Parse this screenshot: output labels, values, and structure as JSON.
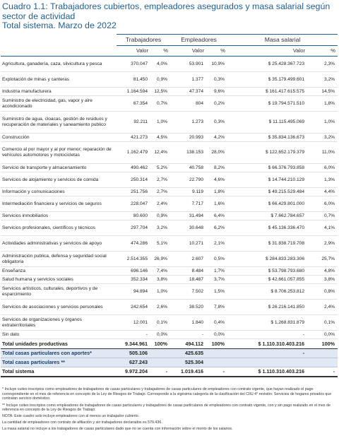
{
  "title": {
    "line1": "Cuadro 1.1: Trabajadores cubiertos, empleadores asegurados y masa salarial según sector de actividad",
    "line2": "Total sistema. Marzo de 2022"
  },
  "groups": {
    "trabajadores": "Trabajadores",
    "empleadores": "Empleadores",
    "masa": "Masa salarial"
  },
  "subheaders": {
    "valor": "Valor",
    "pct": "%"
  },
  "rows": [
    {
      "label": "Agricultura, ganadería, caza, silvicultura y pesca",
      "t": "370.047",
      "tp": "4,0%",
      "e": "53.901",
      "ep": "10,9%",
      "m": "$ 25.428.367.723",
      "mp": "2,3%",
      "cls": "r2"
    },
    {
      "label": "Explotación de minas y canteras",
      "t": "81.450",
      "tp": "0,9%",
      "e": "1.377",
      "ep": "0,3%",
      "m": "$ 35.179.499.601",
      "mp": "3,2%",
      "cls": "r2"
    },
    {
      "label": "Industria manufacturera",
      "t": "1.164.594",
      "tp": "12,5%",
      "e": "47.374",
      "ep": "9,6%",
      "m": "$ 161.417.615.575",
      "mp": "14,5%",
      "cls": "r1"
    },
    {
      "label": "Suministro de electricidad, gas, vapor y aire acondicionado",
      "t": "67.354",
      "tp": "0,7%",
      "e": "804",
      "ep": "0,2%",
      "m": "$ 19.794.571.510",
      "mp": "1,8%",
      "cls": "r2"
    },
    {
      "label": "Suministro de agua, cloacas, gestión de residuos y recuperación de materiales y saneamiento publico",
      "t": "92.211",
      "tp": "1,0%",
      "e": "1.273",
      "ep": "0,3%",
      "m": "$ 11.115.495.069",
      "mp": "1,0%",
      "cls": "r3"
    },
    {
      "label": "Construcción",
      "t": "421.273",
      "tp": "4,5%",
      "e": "20.993",
      "ep": "4,2%",
      "m": "$ 35.834.136.673",
      "mp": "3,2%",
      "cls": "r1"
    },
    {
      "label": "Comercio al por mayor y al por menor; reparación de vehículos automotores y motocicletas",
      "t": "1.162.479",
      "tp": "12,4%",
      "e": "138.153",
      "ep": "28,0%",
      "m": "$ 122.652.179.379",
      "mp": "11,0%",
      "cls": "r3"
    },
    {
      "label": "Servicio de transporte y almacenamiento",
      "t": "490.462",
      "tp": "5,2%",
      "e": "40.758",
      "ep": "8,2%",
      "m": "$ 66.376.793.858",
      "mp": "6,0%",
      "cls": "r1"
    },
    {
      "label": "Servicios de alojamiento y servicios de comida",
      "t": "250.314",
      "tp": "2,7%",
      "e": "22.790",
      "ep": "4,6%",
      "m": "$ 14.744.210.129",
      "mp": "1,3%",
      "cls": "r2"
    },
    {
      "label": "Información y comunicaciones",
      "t": "251.756",
      "tp": "2,7%",
      "e": "9.119",
      "ep": "1,8%",
      "m": "$ 49.215.529.484",
      "mp": "4,4%",
      "cls": "r1"
    },
    {
      "label": "Intermediación financiera y servicios de seguros",
      "t": "228.047",
      "tp": "2,4%",
      "e": "7.717",
      "ep": "1,6%",
      "m": "$ 66.429.801.000",
      "mp": "6,0%",
      "cls": "r2"
    },
    {
      "label": "Servicios inmobiliarios",
      "t": "80.600",
      "tp": "0,9%",
      "e": "31.494",
      "ep": "6,4%",
      "m": "$ 7.662.784.657",
      "mp": "0,7%",
      "cls": "r1"
    },
    {
      "label": "Servicios profesionales, científicos y técnicos",
      "t": "297.704",
      "tp": "3,2%",
      "e": "30.648",
      "ep": "6,2%",
      "m": "$ 45.136.336.470",
      "mp": "4,1%",
      "cls": "r2"
    },
    {
      "label": "Actividades administrativas y servicios de apoyo",
      "t": "474.286",
      "tp": "5,1%",
      "e": "10.271",
      "ep": "2,1%",
      "m": "$ 31.838.719.708",
      "mp": "2,9%",
      "cls": "r2"
    },
    {
      "label": "Administración publica, defensa y seguridad social obligatoria",
      "t": "2.514.355",
      "tp": "26,9%",
      "e": "2.607",
      "ep": "0,5%",
      "m": "$ 284.833.283.306",
      "mp": "25,7%",
      "cls": "r2"
    },
    {
      "label": "Enseñanza",
      "t": "696.146",
      "tp": "7,4%",
      "e": "8.484",
      "ep": "1,7%",
      "m": "$ 53.798.793.680",
      "mp": "4,8%",
      "cls": "r1"
    },
    {
      "label": "Salud humana y servicios sociales",
      "t": "352.334",
      "tp": "3,8%",
      "e": "18.487",
      "ep": "3,7%",
      "m": "$ 42.661.057.855",
      "mp": "3,8%",
      "cls": "r1"
    },
    {
      "label": "Servicios artísticos, culturales, deportivos y de esparcimiento",
      "t": "94.894",
      "tp": "1,0%",
      "e": "7.502",
      "ep": "1,5%",
      "m": "$ 8.706.253.812",
      "mp": "0,8%",
      "cls": "r2"
    },
    {
      "label": "Servicios de asociaciones y servicios personales",
      "t": "242.654",
      "tp": "2,6%",
      "e": "38.520",
      "ep": "7,8%",
      "m": "$ 26.216.141.850",
      "mp": "2,4%",
      "cls": "r2"
    },
    {
      "label": "Servicios de organizaciones y órganos extraterritoriales",
      "t": "12.001",
      "tp": "0,1%",
      "e": "1.840",
      "ep": "0,4%",
      "m": "$ 1.268.831.879",
      "mp": "0,1%",
      "cls": "r2"
    },
    {
      "label": "Sin dato",
      "t": "-",
      "tp": "0,0%",
      "e": "-",
      "ep": "0,0%",
      "m": "-",
      "mp": "0,0%",
      "cls": "r1"
    }
  ],
  "totals": {
    "productivas": {
      "label": "Total unidades productivas",
      "t": "9.344.961",
      "tp": "100%",
      "e": "494.112",
      "ep": "100%",
      "m": "$ 1.110.310.403.216",
      "mp": "100%"
    },
    "con_aportes": {
      "label": "Total casas particulares con aportes*",
      "t": "505.106",
      "tp": "",
      "e": "425.635",
      "ep": "",
      "m": "-",
      "mp": ""
    },
    "particulares": {
      "label": "Total casas particulares **",
      "t": "627.243",
      "tp": "",
      "e": "525.304",
      "ep": "",
      "m": "",
      "mp": ""
    },
    "sistema": {
      "label": "Total sistema",
      "t": "9.972.204",
      "tp": "-",
      "e": "1.019.416",
      "ep": "-",
      "m": "$ 1.110.310.403.216",
      "mp": "-"
    }
  },
  "notes": [
    "* Incluye cuites inscriptos como empleadores de trabajadores de casas particulares y trabajadores de casas particulares de empleadores con contrato vigente, que hayan realizado el pago correspondiente en el mes de referencia en concepto de la Ley de Riesgos de Trabajo. Corresponde a la vigésima categoría de la clasificación del CIIU 4° revisión: Servicios de hogares privados que contratan servicio doméstico.",
    "** Incluye cuites inscriptos como empleadores de trabajadores de casas particulares y trabajadores de casas particulares de empleadores con contrato vigente, con y sin pago realizado en el mes de referencia en concepto de la Ley de Riesgos de Trabajo.",
    "NOTA: Este cuadro solo incluye empleadores con al menos un trabajador cubierto.",
    "La cantidad de empleadores con contrato de afiliación y sin trabajadores declarados es 579.436.",
    "La masa salarial no incluye a los trabajadores de casas particulares dado que no se cuenta con información sobre el monto de los salarios."
  ]
}
